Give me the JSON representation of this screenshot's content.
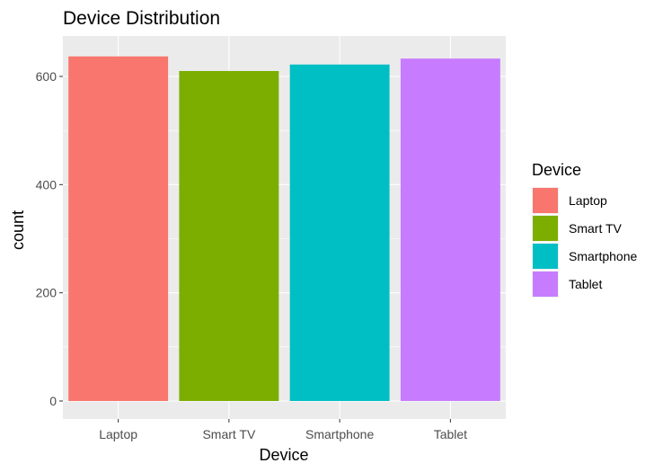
{
  "chart_data": {
    "type": "bar",
    "title": "Device Distribution",
    "xlabel": "Device",
    "ylabel": "count",
    "categories": [
      "Laptop",
      "Smart TV",
      "Smartphone",
      "Tablet"
    ],
    "values": [
      637,
      610,
      622,
      633
    ],
    "colors": [
      "#F8766D",
      "#7CAE00",
      "#00BFC4",
      "#C77CFF"
    ],
    "ylim": [
      0,
      660
    ],
    "yticks": [
      0,
      200,
      400,
      600
    ],
    "ytick_labels": [
      "0",
      "200",
      "400",
      "600"
    ],
    "grid": true,
    "panel_background": "#EBEBEB",
    "legend": {
      "title": "Device",
      "position": "right",
      "entries": [
        "Laptop",
        "Smart TV",
        "Smartphone",
        "Tablet"
      ]
    }
  }
}
